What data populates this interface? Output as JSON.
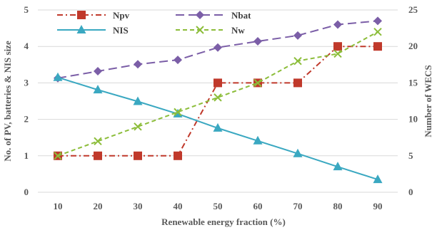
{
  "chart_data": {
    "type": "line",
    "title": "",
    "xlabel": "Renewable energy fraction (%)",
    "ylabel": "No. of PV,  batteries & NIS size",
    "y2label": "Number of WECS",
    "x": [
      10,
      20,
      30,
      40,
      50,
      60,
      70,
      80,
      90
    ],
    "xlim": [
      5,
      95
    ],
    "ylim": [
      0,
      5
    ],
    "y2lim": [
      0,
      25
    ],
    "yticks": [
      0,
      1,
      2,
      3,
      4,
      5
    ],
    "y2ticks": [
      0,
      5,
      10,
      15,
      20,
      25
    ],
    "grid": "horizontal",
    "legend_position": "top",
    "series": [
      {
        "name": "Npv",
        "axis": "left",
        "color": "#c0392b",
        "marker": "square",
        "dash": "dashdot",
        "values": [
          1,
          1,
          1,
          1,
          3,
          3,
          3,
          4,
          4
        ]
      },
      {
        "name": "Nbat",
        "axis": "left",
        "color": "#7b5ea7",
        "marker": "diamond",
        "dash": "longdash",
        "values": [
          3.13,
          3.32,
          3.51,
          3.63,
          3.97,
          4.14,
          4.3,
          4.6,
          4.7
        ]
      },
      {
        "name": "NIS",
        "axis": "left",
        "color": "#3aa8c1",
        "marker": "triangle",
        "dash": "solid",
        "values": [
          3.15,
          2.81,
          2.49,
          2.15,
          1.76,
          1.41,
          1.06,
          0.7,
          0.35
        ]
      },
      {
        "name": "Nw",
        "axis": "right",
        "color": "#8cbd3a",
        "marker": "x",
        "dash": "dashed",
        "values": [
          5,
          7,
          9,
          11,
          13,
          15,
          18,
          19,
          22
        ]
      }
    ]
  }
}
